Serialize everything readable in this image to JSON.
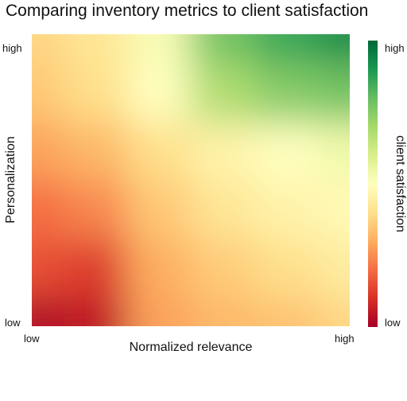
{
  "chart_data": {
    "type": "heatmap",
    "title": "Comparing inventory metrics to client satisfaction",
    "xlabel": "Normalized relevance",
    "ylabel": "Personalization",
    "xticks": {
      "low": "low",
      "high": "high"
    },
    "yticks": {
      "low": "low",
      "high": "high"
    },
    "colorbar": {
      "label": "client satisfaction",
      "low_label": "low",
      "high_label": "high",
      "colormap": "RdYlGn",
      "stops": [
        "#a50026",
        "#d73027",
        "#f46d43",
        "#fdae61",
        "#fee08b",
        "#ffffbf",
        "#d9ef8b",
        "#a6d96a",
        "#66bd63",
        "#1a9850",
        "#006837"
      ]
    },
    "xlim": [
      0,
      1
    ],
    "ylim": [
      0,
      1
    ],
    "zlim": [
      0,
      1
    ],
    "x": [
      0,
      0.2,
      0.4,
      0.6,
      0.8,
      1.0
    ],
    "y": [
      0,
      0.2,
      0.4,
      0.6,
      0.8,
      1.0
    ],
    "z": [
      [
        0.02,
        0.05,
        0.28,
        0.32,
        0.34,
        0.38
      ],
      [
        0.15,
        0.12,
        0.3,
        0.36,
        0.4,
        0.44
      ],
      [
        0.2,
        0.24,
        0.35,
        0.42,
        0.46,
        0.48
      ],
      [
        0.28,
        0.32,
        0.4,
        0.46,
        0.5,
        0.54
      ],
      [
        0.35,
        0.4,
        0.5,
        0.68,
        0.75,
        0.78
      ],
      [
        0.38,
        0.42,
        0.52,
        0.78,
        0.86,
        0.92
      ]
    ]
  }
}
